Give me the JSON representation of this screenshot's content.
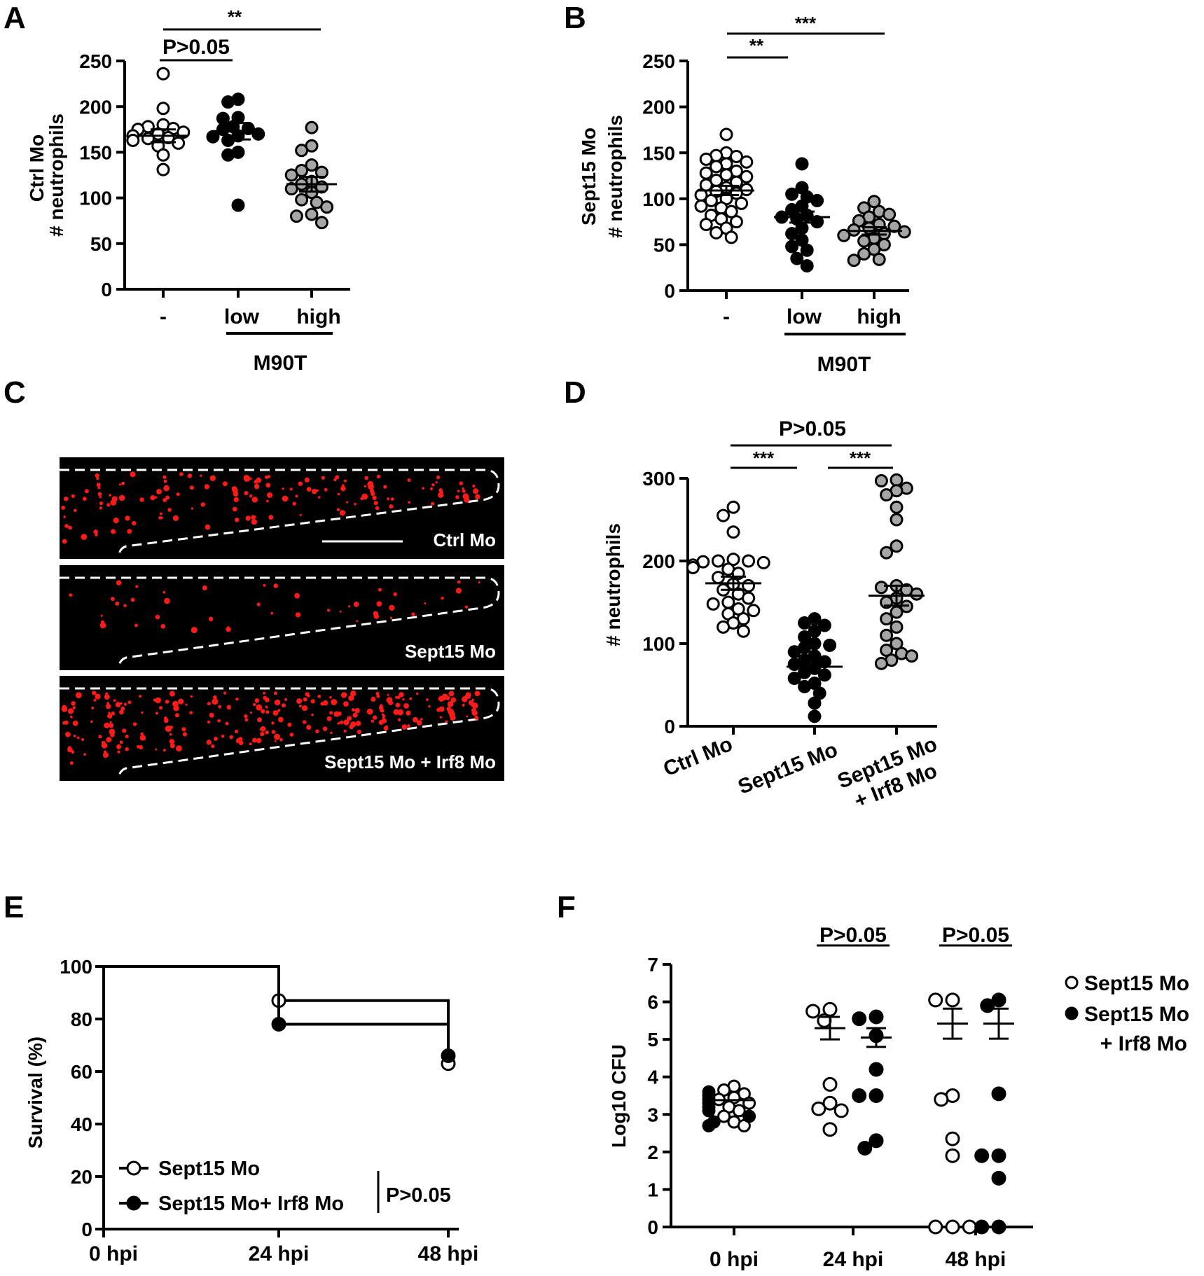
{
  "colors": {
    "open_fill": "#ffffff",
    "filled": "#000000",
    "gray": "#a6a6a6",
    "neutrophil_red": "#ff1a1a",
    "image_bg": "#000000"
  },
  "panel_letters": {
    "A": "A",
    "B": "B",
    "C": "C",
    "D": "D",
    "E": "E",
    "F": "F"
  },
  "chart_data": [
    {
      "panel": "A",
      "type": "scatter",
      "ylabel_line1": "Ctrl Mo",
      "ylabel_line2": "# neutrophils",
      "ylim": [
        0,
        250
      ],
      "yticks": [
        "0",
        "50",
        "100",
        "150",
        "200",
        "250"
      ],
      "categories": [
        "-",
        "low",
        "high"
      ],
      "group_label": "M90T",
      "means": [
        168,
        173,
        115
      ],
      "sems": [
        7,
        9,
        8
      ],
      "series": [
        {
          "style": "open",
          "values": [
            236,
            198,
            180,
            178,
            176,
            175,
            172,
            170,
            168,
            166,
            165,
            163,
            160,
            157,
            147,
            131
          ]
        },
        {
          "style": "filled",
          "values": [
            208,
            205,
            188,
            187,
            178,
            176,
            175,
            170,
            168,
            167,
            163,
            150,
            147,
            92
          ]
        },
        {
          "style": "gray",
          "values": [
            177,
            157,
            152,
            136,
            130,
            128,
            125,
            118,
            115,
            112,
            110,
            106,
            98,
            95,
            90,
            82,
            80,
            73
          ]
        }
      ],
      "comparisons": [
        {
          "from": 0,
          "to": 1,
          "label": "P>0.05"
        },
        {
          "from": 0,
          "to": 2,
          "label": "**"
        }
      ]
    },
    {
      "panel": "B",
      "type": "scatter",
      "ylabel_line1": "Sept15 Mo",
      "ylabel_line2": "# neutrophils",
      "ylim": [
        0,
        250
      ],
      "yticks": [
        "0",
        "50",
        "100",
        "150",
        "200",
        "250"
      ],
      "categories": [
        "-",
        "low",
        "high"
      ],
      "group_label": "M90T",
      "means": [
        109,
        80,
        65
      ],
      "sems": [
        5,
        6,
        4
      ],
      "series": [
        {
          "style": "open",
          "values": [
            170,
            150,
            147,
            146,
            143,
            140,
            138,
            135,
            130,
            128,
            126,
            124,
            120,
            118,
            115,
            112,
            110,
            108,
            106,
            104,
            100,
            98,
            95,
            92,
            90,
            86,
            82,
            78,
            75,
            72,
            68,
            63,
            58
          ]
        },
        {
          "style": "filled",
          "values": [
            138,
            112,
            105,
            102,
            98,
            92,
            88,
            82,
            80,
            78,
            75,
            68,
            62,
            55,
            48,
            44,
            35,
            27
          ]
        },
        {
          "style": "gray",
          "values": [
            97,
            90,
            86,
            83,
            80,
            76,
            72,
            70,
            68,
            66,
            64,
            62,
            60,
            57,
            54,
            50,
            45,
            40,
            34,
            33
          ]
        }
      ],
      "comparisons": [
        {
          "from": 0,
          "to": 1,
          "label": "**"
        },
        {
          "from": 0,
          "to": 2,
          "label": "***"
        }
      ]
    },
    {
      "panel": "D",
      "type": "scatter",
      "ylabel": "# neutrophils",
      "ylim": [
        0,
        300
      ],
      "yticks": [
        "0",
        "100",
        "200",
        "300"
      ],
      "categories": [
        "Ctrl Mo",
        "Sept15 Mo",
        "Sept15 Mo",
        "+ Irf8 Mo"
      ],
      "means": [
        173,
        72,
        158
      ],
      "sems": [
        8,
        6,
        12
      ],
      "series": [
        {
          "style": "open",
          "values": [
            265,
            255,
            235,
            202,
            200,
            200,
            199,
            198,
            195,
            192,
            190,
            185,
            180,
            172,
            170,
            165,
            160,
            155,
            150,
            148,
            142,
            140,
            136,
            130,
            125,
            120,
            115
          ]
        },
        {
          "style": "filled",
          "values": [
            130,
            125,
            122,
            115,
            108,
            100,
            98,
            95,
            90,
            85,
            80,
            78,
            75,
            70,
            65,
            62,
            58,
            52,
            48,
            40,
            28,
            12
          ]
        },
        {
          "style": "gray",
          "values": [
            298,
            297,
            288,
            285,
            280,
            265,
            250,
            218,
            210,
            170,
            168,
            165,
            160,
            155,
            150,
            145,
            138,
            130,
            120,
            110,
            100,
            92,
            88,
            85,
            80,
            76
          ]
        }
      ],
      "comparisons": [
        {
          "from": 0,
          "to": 1,
          "label": "***"
        },
        {
          "from": 1,
          "to": 2,
          "label": "***"
        },
        {
          "from": 0,
          "to": 2,
          "label": "P>0.05"
        }
      ]
    },
    {
      "panel": "E",
      "type": "line",
      "ylabel": "Survival (%)",
      "ylim": [
        0,
        100
      ],
      "yticks": [
        "0",
        "20",
        "40",
        "60",
        "80",
        "100"
      ],
      "categories": [
        "0 hpi",
        "24 hpi",
        "48 hpi"
      ],
      "series": [
        {
          "name": "Sept15 Mo",
          "style": "open",
          "values": [
            100,
            87,
            63
          ]
        },
        {
          "name": "Sept15 Mo+ Irf8 Mo",
          "style": "filled",
          "values": [
            100,
            78,
            66
          ]
        }
      ],
      "stat_label": "P>0.05"
    },
    {
      "panel": "F",
      "type": "scatter",
      "ylabel": "Log10 CFU",
      "ylim": [
        0,
        7
      ],
      "yticks": [
        "0",
        "1",
        "2",
        "3",
        "4",
        "5",
        "6",
        "7"
      ],
      "categories": [
        "0 hpi",
        "24 hpi",
        "48 hpi"
      ],
      "legend": [
        {
          "style": "open",
          "label_lines": [
            "Sept15 Mo"
          ]
        },
        {
          "style": "filled",
          "label_lines": [
            "Sept15 Mo",
            "+ Irf8 Mo"
          ]
        }
      ],
      "groups": [
        {
          "open": {
            "values": [
              3.75,
              3.65,
              3.55,
              3.45,
              3.4,
              3.3,
              3.2,
              3.1,
              2.95,
              2.8,
              2.7
            ],
            "mean": 3.38,
            "sem": 0.08
          },
          "filled": {
            "values": [
              3.6,
              3.5,
              3.4,
              3.3,
              3.2,
              3.1,
              2.95,
              2.8,
              2.7
            ],
            "mean": 3.38,
            "sem": 0.08
          }
        },
        {
          "open": {
            "values": [
              5.8,
              5.75,
              5.5,
              3.8,
              3.3,
              3.15,
              3.1,
              2.6
            ],
            "mean": 5.3,
            "sem": 0.3
          },
          "filled": {
            "values": [
              5.6,
              5.55,
              5.1,
              4.2,
              3.5,
              3.5,
              2.3,
              2.1
            ],
            "mean": 5.05,
            "sem": 0.25
          },
          "label": "P>0.05"
        },
        {
          "open": {
            "values": [
              6.05,
              6.05,
              3.5,
              3.4,
              2.35,
              1.9,
              0,
              0,
              0
            ],
            "mean": 5.42,
            "sem": 0.4
          },
          "filled": {
            "values": [
              6.05,
              5.9,
              3.55,
              1.9,
              1.9,
              1.3,
              0,
              0
            ],
            "mean": 5.42,
            "sem": 0.4
          },
          "label": "P>0.05"
        }
      ]
    }
  ],
  "micrographs": [
    {
      "label": "Ctrl Mo",
      "density": "high",
      "scale_bar": true
    },
    {
      "label": "Sept15 Mo",
      "density": "low",
      "scale_bar": false
    },
    {
      "label": "Sept15 Mo + Irf8 Mo",
      "density": "very_high",
      "scale_bar": false
    }
  ]
}
